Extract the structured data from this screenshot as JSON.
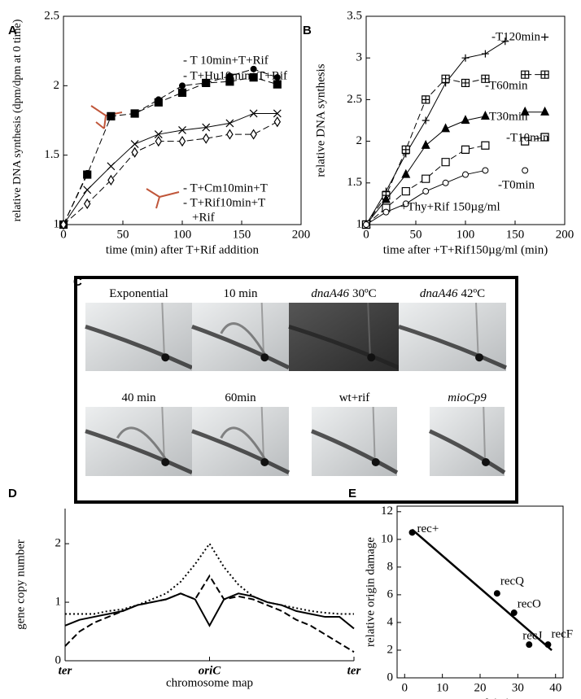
{
  "chart_data": [
    {
      "panel": "A",
      "type": "scatter",
      "lines": true,
      "xlabel": "time (min) after T+Rif addition",
      "ylabel": "relative DNA synthesis (dpm/dpm at 0 time)",
      "xlim": [
        0,
        200
      ],
      "xticks": [
        0,
        50,
        100,
        150,
        200
      ],
      "ylim": [
        1,
        2.5
      ],
      "yticks": [
        1,
        1.5,
        2,
        2.5
      ],
      "x": [
        0,
        20,
        40,
        60,
        80,
        100,
        120,
        140,
        160,
        180
      ],
      "series": [
        {
          "name": "- T 10min+T+Rif",
          "color": "#000000",
          "marker": "circle-filled",
          "line": "dashed",
          "values": [
            1,
            1.37,
            null,
            1.8,
            1.9,
            2.0,
            2.02,
            2.07,
            2.12,
            2.06
          ]
        },
        {
          "name": "- T+Hu10min+T+Rif",
          "color": "#000000",
          "marker": "square-filled",
          "line": "dashed",
          "values": [
            1,
            1.36,
            1.78,
            1.8,
            1.88,
            1.95,
            2.02,
            2.03,
            2.06,
            2.01
          ]
        },
        {
          "name": "- T+Cm10min+T",
          "color": "#000000",
          "marker": "x",
          "line": "solid",
          "values": [
            1,
            1.25,
            1.42,
            1.58,
            1.65,
            1.68,
            1.7,
            1.73,
            1.8,
            1.8
          ]
        },
        {
          "name": "- T+Rif10min+T",
          "color": "#000000",
          "marker": "diamond-open",
          "line": "dashed",
          "values": [
            1,
            1.15,
            1.32,
            1.52,
            1.6,
            1.6,
            1.62,
            1.65,
            1.65,
            1.74
          ]
        }
      ],
      "annotations": [
        "+Rif"
      ]
    },
    {
      "panel": "B",
      "type": "scatter",
      "lines": true,
      "xlabel": "time after +T+Rif150µg/ml (min)",
      "ylabel": "relative DNA synthesis",
      "xlim": [
        0,
        200
      ],
      "xticks": [
        0,
        50,
        100,
        150,
        200
      ],
      "ylim": [
        1,
        3.5
      ],
      "yticks": [
        1,
        1.5,
        2,
        2.5,
        3,
        3.5
      ],
      "x": [
        0,
        20,
        40,
        60,
        80,
        100,
        120,
        140,
        160,
        180
      ],
      "series": [
        {
          "name": "-T120min",
          "color": "#000000",
          "marker": "plus",
          "line": "solid",
          "values": [
            1,
            1.4,
            1.85,
            2.25,
            2.7,
            3.0,
            3.05,
            3.2,
            null,
            3.25
          ]
        },
        {
          "name": "-T60min",
          "color": "#000000",
          "marker": "square-plus",
          "line": "dashed",
          "values": [
            1,
            1.35,
            1.9,
            2.5,
            2.75,
            2.7,
            2.75,
            null,
            2.8,
            2.8
          ]
        },
        {
          "name": "-T30min",
          "color": "#000000",
          "marker": "triangle-filled",
          "line": "solid",
          "values": [
            1,
            1.3,
            1.6,
            1.95,
            2.15,
            2.25,
            2.3,
            null,
            2.35,
            2.35
          ]
        },
        {
          "name": "-T10min",
          "color": "#000000",
          "marker": "square-open",
          "line": "dashed",
          "values": [
            1,
            1.2,
            1.4,
            1.55,
            1.75,
            1.9,
            1.95,
            null,
            2.0,
            2.05
          ]
        },
        {
          "name": "-T0min",
          "color": "#000000",
          "marker": "circle-open",
          "line": "solid",
          "values": [
            1,
            1.15,
            1.25,
            1.4,
            1.5,
            1.6,
            1.65,
            null,
            1.65,
            null
          ]
        }
      ],
      "annotations": [
        "+Thy+Rif 150µg/ml"
      ]
    },
    {
      "panel": "D",
      "type": "line",
      "xlabel": "chromosome map",
      "ylabel": "gene copy number",
      "xlim": [
        0,
        1
      ],
      "xticks": [
        {
          "value": 0,
          "label": "ter"
        },
        {
          "value": 0.5,
          "label": "oriC"
        },
        {
          "value": 1,
          "label": "ter"
        }
      ],
      "ylim": [
        0,
        2.6
      ],
      "yticks": [
        0,
        1,
        2
      ],
      "x": [
        0,
        0.05,
        0.1,
        0.15,
        0.2,
        0.25,
        0.3,
        0.35,
        0.4,
        0.45,
        0.5,
        0.55,
        0.6,
        0.65,
        0.7,
        0.75,
        0.8,
        0.85,
        0.9,
        0.95,
        1
      ],
      "series": [
        {
          "color": "#000000",
          "line": "solid",
          "values": [
            0.6,
            0.7,
            0.75,
            0.8,
            0.85,
            0.95,
            1.0,
            1.05,
            1.15,
            1.05,
            0.6,
            1.05,
            1.15,
            1.1,
            1.0,
            0.95,
            0.85,
            0.8,
            0.75,
            0.75,
            0.55
          ]
        },
        {
          "color": "#000000",
          "line": "dashed",
          "values": [
            0.25,
            0.5,
            0.65,
            0.75,
            0.85,
            0.95,
            1.0,
            1.05,
            1.15,
            1.05,
            1.45,
            1.05,
            1.1,
            1.05,
            0.95,
            0.85,
            0.7,
            0.6,
            0.45,
            0.3,
            0.15
          ]
        },
        {
          "color": "#000000",
          "line": "dotted",
          "values": [
            0.8,
            0.8,
            0.8,
            0.85,
            0.88,
            0.95,
            1.05,
            1.15,
            1.35,
            1.65,
            2.0,
            1.6,
            1.3,
            1.1,
            1.0,
            0.95,
            0.9,
            0.85,
            0.82,
            0.8,
            0.8
          ]
        }
      ]
    },
    {
      "panel": "E",
      "type": "scatter",
      "fit_line": true,
      "xlabel": "survival (%)",
      "ylabel": "relative origin damage",
      "xlim": [
        -2,
        42
      ],
      "xticks": [
        0,
        10,
        20,
        30,
        40
      ],
      "ylim": [
        0,
        12.4
      ],
      "yticks": [
        0,
        2,
        4,
        6,
        8,
        10,
        12
      ],
      "categories": [
        "rec+",
        "recQ",
        "recO",
        "recJ",
        "recF"
      ],
      "x": [
        2,
        24.5,
        29,
        33,
        38
      ],
      "series": [
        {
          "color": "#000000",
          "marker": "circle-filled",
          "values": [
            10.5,
            6.1,
            4.7,
            2.4,
            2.4
          ]
        }
      ]
    }
  ],
  "gel_panel": {
    "panel": "C",
    "labels": [
      {
        "text": "Exponential"
      },
      {
        "text": "10 min"
      },
      {
        "gene": "dnaA46",
        "text": "30ºC"
      },
      {
        "gene": "dnaA46",
        "text": "42ºC"
      },
      {
        "text": "40 min"
      },
      {
        "text": "60min"
      },
      {
        "text": "wt+rif"
      },
      {
        "gene": "mioCp9"
      }
    ]
  }
}
